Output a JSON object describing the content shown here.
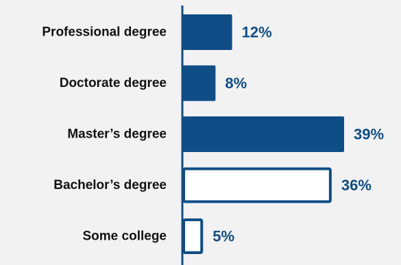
{
  "chart_data": {
    "type": "bar",
    "orientation": "horizontal",
    "categories": [
      "Professional degree",
      "Doctorate degree",
      "Master’s degree",
      "Bachelor’s degree",
      "Some college"
    ],
    "values": [
      12,
      8,
      39,
      36,
      5
    ],
    "value_labels": [
      "12%",
      "8%",
      "39%",
      "36%",
      "5%"
    ],
    "highlighted": [
      false,
      false,
      false,
      true,
      true
    ],
    "title": "",
    "xlabel": "",
    "ylabel": "",
    "xlim": [
      0,
      39
    ],
    "grid": false,
    "legend": "none",
    "colors": {
      "bar_fill": "#0e4d86",
      "bar_outline": "#0e4d86",
      "highlight_fill": "#ffffff",
      "axis_line": "#0e4d86",
      "value_text": "#0e4d86",
      "category_text": "#111111",
      "background": "#f2f2f2"
    }
  }
}
